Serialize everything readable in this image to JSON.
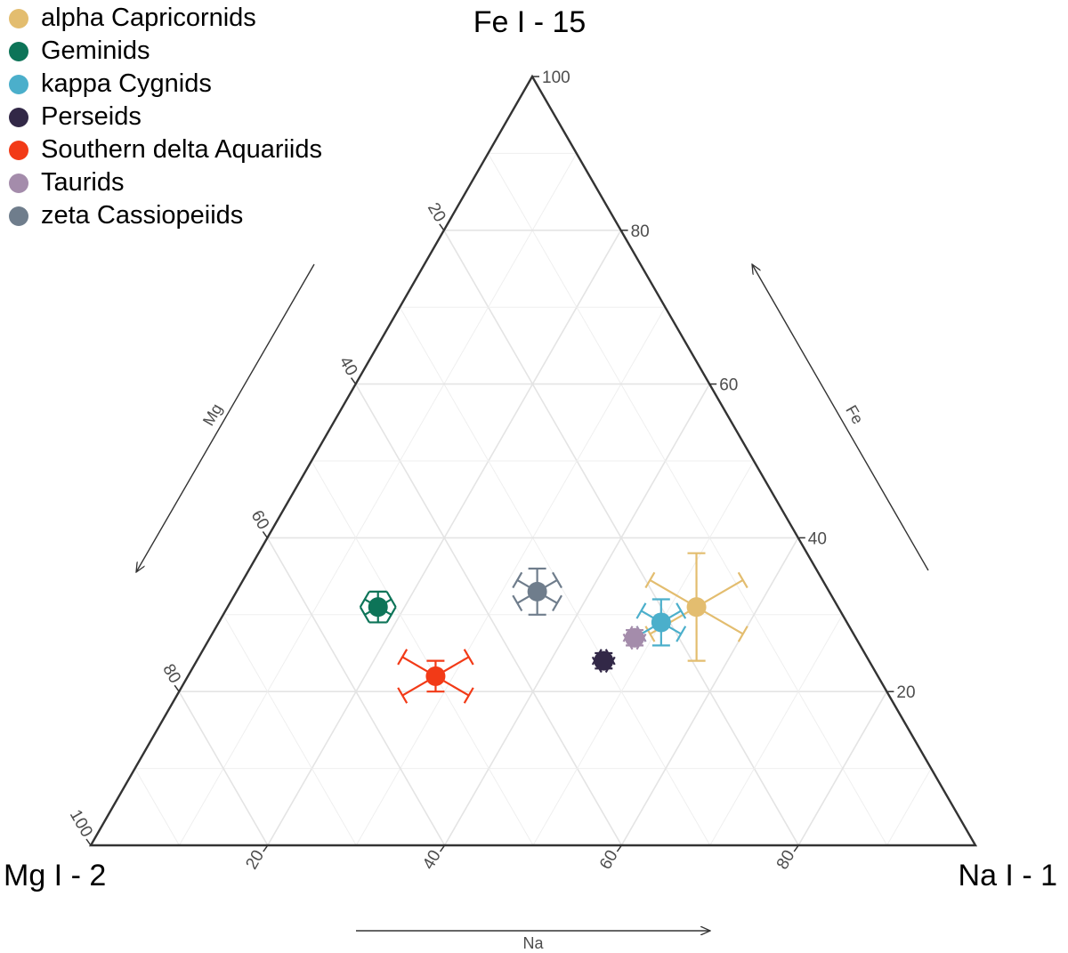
{
  "chart_data": {
    "type": "scatter",
    "subtype": "ternary",
    "vertices": {
      "top": "Fe I - 15",
      "left": "Mg I - 2",
      "right": "Na I - 1"
    },
    "axis_titles": {
      "fe": "Fe",
      "mg": "Mg",
      "na": "Na"
    },
    "ticks": [
      20,
      40,
      60,
      80,
      100
    ],
    "grid": true,
    "legend_position": "top-left",
    "series": [
      {
        "name": "alpha Capricornids",
        "color": "#E3BD6F",
        "fe": 31,
        "na": 53,
        "mg": 16,
        "err_fe": 7,
        "err_na": 7,
        "err_mg": 7
      },
      {
        "name": "Geminids",
        "color": "#0D7458",
        "fe": 31,
        "na": 17,
        "mg": 52,
        "err_fe": 2,
        "err_na": 2,
        "err_mg": 2
      },
      {
        "name": "kappa Cygnids",
        "color": "#4BAFCB",
        "fe": 29,
        "na": 50,
        "mg": 21,
        "err_fe": 3,
        "err_na": 3,
        "err_mg": 3
      },
      {
        "name": "Perseids",
        "color": "#322847",
        "fe": 24,
        "na": 46,
        "mg": 30,
        "err_fe": 1,
        "err_na": 1,
        "err_mg": 1
      },
      {
        "name": "Southern delta Aquariids",
        "color": "#F23A17",
        "fe": 22,
        "na": 28,
        "mg": 50,
        "err_fe": 2,
        "err_na": 5,
        "err_mg": 5
      },
      {
        "name": "Taurids",
        "color": "#A48CAB",
        "fe": 27,
        "na": 48,
        "mg": 25,
        "err_fe": 1,
        "err_na": 1,
        "err_mg": 1
      },
      {
        "name": "zeta Cassiopeiids",
        "color": "#6F7D8C",
        "fe": 33,
        "na": 34,
        "mg": 33,
        "err_fe": 3,
        "err_na": 3,
        "err_mg": 3
      }
    ]
  }
}
